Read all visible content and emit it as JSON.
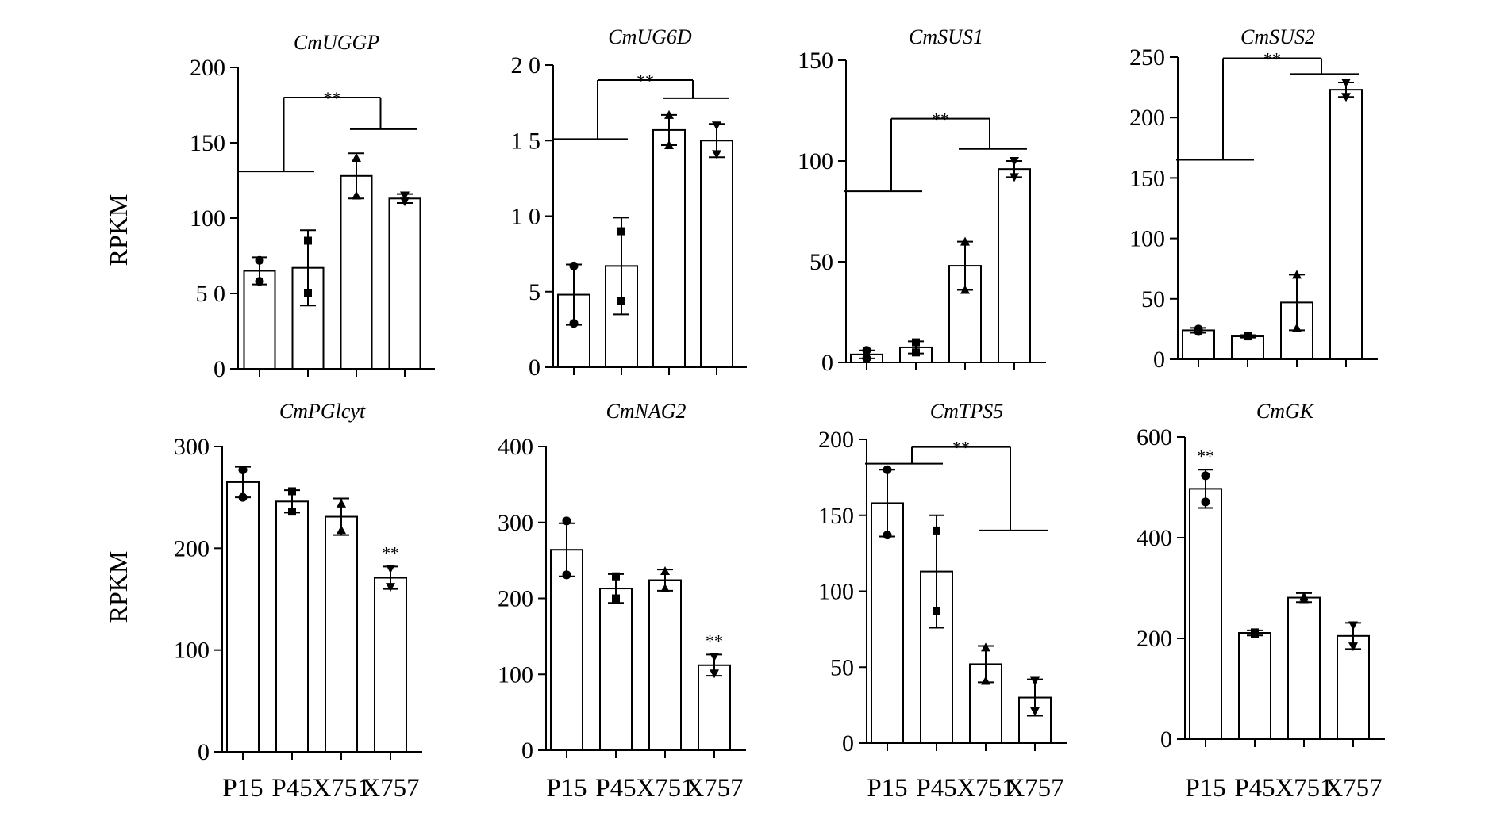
{
  "y_axis_label": "RPKM",
  "chart_data": [
    {
      "type": "bar",
      "title": "CmUGGP",
      "categories": [
        "P15",
        "P45",
        "X751",
        "X757"
      ],
      "values": [
        65,
        67,
        128,
        113
      ],
      "err": [
        9,
        25,
        15,
        3
      ],
      "points": [
        [
          72,
          58
        ],
        [
          85,
          50
        ],
        [
          140,
          115
        ],
        [
          115,
          111
        ]
      ],
      "ylim": [
        0,
        200
      ],
      "yticks": [
        0,
        50,
        100,
        150,
        200
      ],
      "ytick_labels": [
        "0",
        "5 0",
        "100",
        "150",
        "200"
      ],
      "significance": {
        "type": "bracket",
        "label": "**",
        "level": 180,
        "left_level": 131,
        "right_level": 159,
        "left_span": [
          0,
          1
        ],
        "right_span": [
          2,
          3
        ]
      }
    },
    {
      "type": "bar",
      "title": "CmUG6D",
      "categories": [
        "P15",
        "P45",
        "X751",
        "X757"
      ],
      "values": [
        4.8,
        6.7,
        15.7,
        15.0
      ],
      "err": [
        2,
        3.2,
        1,
        1.1
      ],
      "points": [
        [
          6.7,
          2.9
        ],
        [
          9.0,
          4.4
        ],
        [
          16.7,
          14.7
        ],
        [
          16.0,
          14.1
        ]
      ],
      "ylim": [
        0,
        20
      ],
      "yticks": [
        0,
        5,
        10,
        15,
        20
      ],
      "ytick_labels": [
        "0",
        "5",
        "1 0",
        "1 5",
        "2 0"
      ],
      "significance": {
        "type": "bracket",
        "label": "**",
        "level": 19.0,
        "left_level": 15.1,
        "right_level": 17.8,
        "left_span": [
          0,
          1
        ],
        "right_span": [
          2,
          3
        ]
      }
    },
    {
      "type": "bar",
      "title": "CmSUS1",
      "categories": [
        "P15",
        "P45",
        "X751",
        "X757"
      ],
      "values": [
        4,
        7.5,
        48,
        96
      ],
      "err": [
        2,
        3,
        12,
        4
      ],
      "points": [
        [
          6,
          2
        ],
        [
          10,
          5
        ],
        [
          60,
          36
        ],
        [
          100,
          92
        ]
      ],
      "ylim": [
        0,
        150
      ],
      "yticks": [
        0,
        50,
        100,
        150
      ],
      "ytick_labels": [
        "0",
        "50",
        "100",
        "150"
      ],
      "significance": {
        "type": "bracket",
        "label": "**",
        "level": 121,
        "left_level": 85,
        "right_level": 106,
        "left_span": [
          0,
          1
        ],
        "right_span": [
          2,
          3
        ]
      }
    },
    {
      "type": "bar",
      "title": "CmSUS2",
      "categories": [
        "P15",
        "P45",
        "X751",
        "X757"
      ],
      "values": [
        24,
        19,
        47,
        223
      ],
      "err": [
        2,
        1,
        23,
        6
      ],
      "points": [
        [
          25,
          23
        ],
        [
          19,
          19
        ],
        [
          70,
          26
        ],
        [
          229,
          217
        ]
      ],
      "ylim": [
        0,
        250
      ],
      "yticks": [
        0,
        50,
        100,
        150,
        200,
        250
      ],
      "ytick_labels": [
        "0",
        "50",
        "100",
        "150",
        "200",
        "250"
      ],
      "significance": {
        "type": "bracket",
        "label": "**",
        "level": 249,
        "left_level": 165,
        "right_level": 236,
        "left_span": [
          0,
          1
        ],
        "right_span": [
          2,
          3
        ]
      }
    },
    {
      "type": "bar",
      "title": "CmPGlcyt",
      "categories": [
        "P15",
        "P45",
        "X751",
        "X757"
      ],
      "values": [
        265,
        246,
        231,
        171
      ],
      "err": [
        15,
        11,
        18,
        11
      ],
      "points": [
        [
          277,
          250
        ],
        [
          256,
          236
        ],
        [
          244,
          218
        ],
        [
          180,
          162
        ]
      ],
      "ylim": [
        0,
        300
      ],
      "yticks": [
        0,
        100,
        200,
        300
      ],
      "ytick_labels": [
        "0",
        "100",
        "200",
        "300"
      ],
      "significance": {
        "type": "star",
        "label": "**",
        "bar": 3
      }
    },
    {
      "type": "bar",
      "title": "CmNAG2",
      "categories": [
        "P15",
        "P45",
        "X751",
        "X757"
      ],
      "values": [
        264,
        213,
        224,
        112
      ],
      "err": [
        35,
        19,
        14,
        14
      ],
      "points": [
        [
          302,
          231
        ],
        [
          229,
          200
        ],
        [
          236,
          213
        ],
        [
          123,
          101
        ]
      ],
      "ylim": [
        0,
        400
      ],
      "yticks": [
        0,
        100,
        200,
        300,
        400
      ],
      "ytick_labels": [
        "0",
        "100",
        "200",
        "300",
        "400"
      ],
      "significance": {
        "type": "star",
        "label": "**",
        "bar": 3
      }
    },
    {
      "type": "bar",
      "title": "CmTPS5",
      "categories": [
        "P15",
        "P45",
        "X751",
        "X757"
      ],
      "values": [
        158,
        113,
        52,
        30
      ],
      "err": [
        22,
        37,
        12,
        12
      ],
      "points": [
        [
          180,
          137
        ],
        [
          140,
          87
        ],
        [
          63,
          41
        ],
        [
          41,
          21
        ]
      ],
      "ylim": [
        0,
        200
      ],
      "yticks": [
        0,
        50,
        100,
        150,
        200
      ],
      "ytick_labels": [
        "0",
        "50",
        "100",
        "150",
        "200"
      ],
      "significance": {
        "type": "bracket",
        "label": "**",
        "level": 195,
        "left_level": 184,
        "right_level": 140,
        "left_span": [
          0,
          1
        ],
        "right_span": [
          2,
          3
        ]
      }
    },
    {
      "type": "bar",
      "title": "CmGK",
      "categories": [
        "P15",
        "P45",
        "X751",
        "X757"
      ],
      "values": [
        497,
        211,
        281,
        205
      ],
      "err": [
        38,
        5,
        9,
        26
      ],
      "points": [
        [
          523,
          471
        ],
        [
          212,
          209
        ],
        [
          283,
          278
        ],
        [
          226,
          184
        ]
      ],
      "ylim": [
        0,
        600
      ],
      "yticks": [
        0,
        200,
        400,
        600
      ],
      "ytick_labels": [
        "0",
        "200",
        "400",
        "600"
      ],
      "significance": {
        "type": "star",
        "label": "**",
        "bar": 0
      }
    }
  ]
}
